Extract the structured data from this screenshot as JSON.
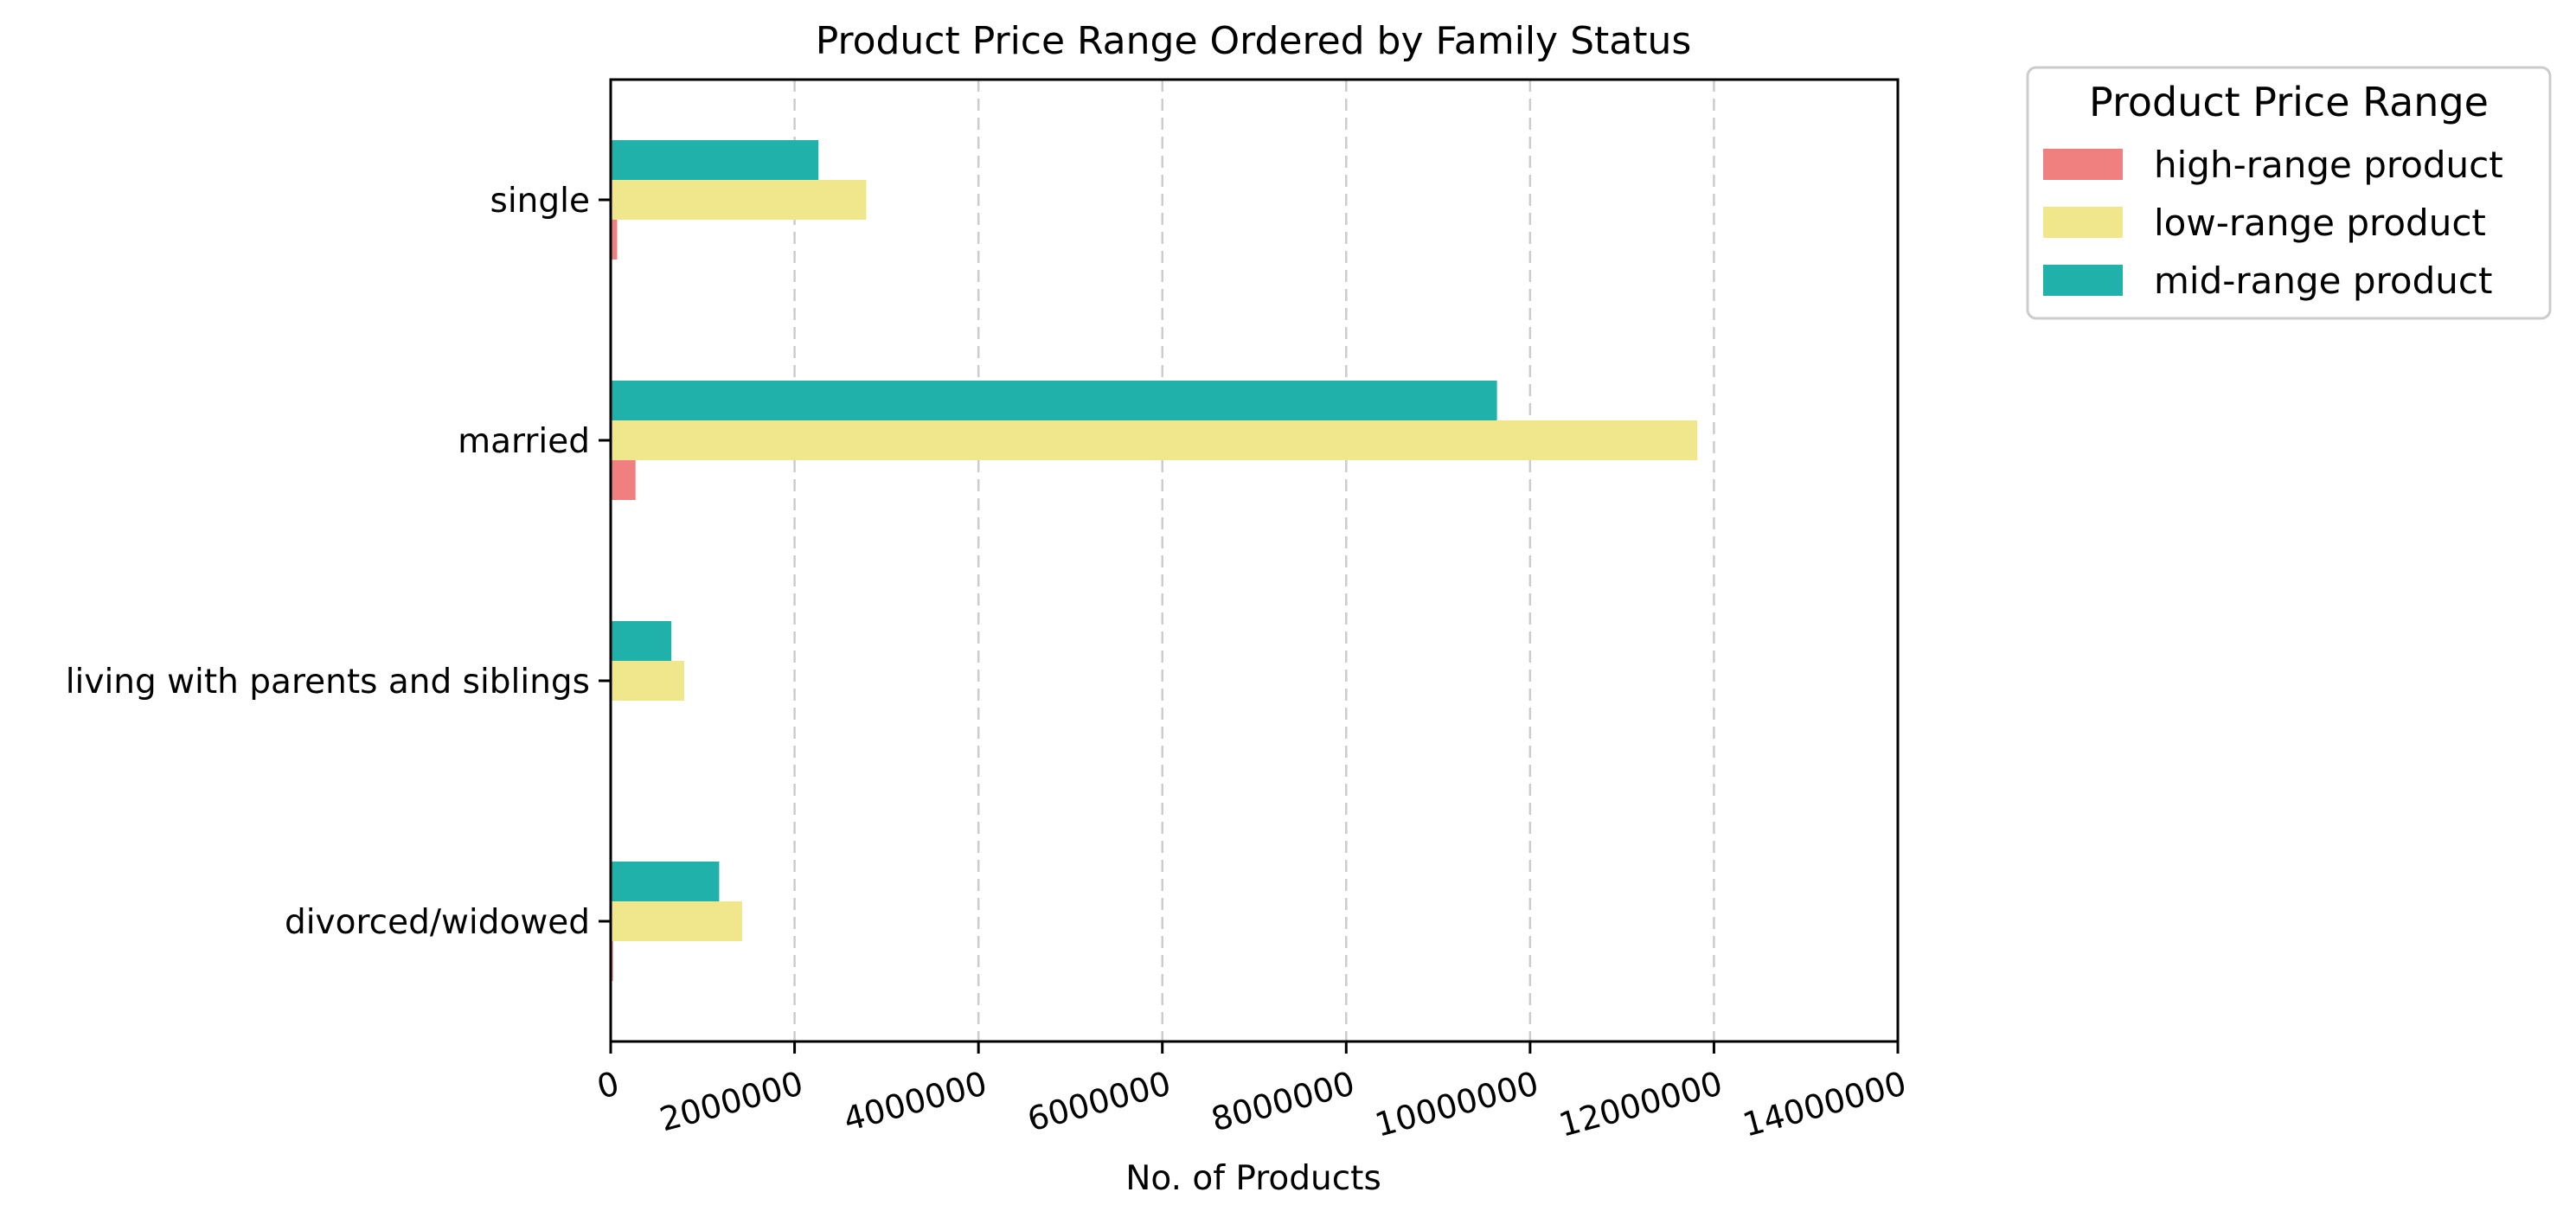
{
  "chart_data": {
    "type": "bar",
    "orientation": "horizontal",
    "title": "Product Price Range Ordered by Family Status",
    "xlabel": "No. of Products",
    "ylabel": "",
    "xlim": [
      0,
      14000000
    ],
    "xticks": [
      0,
      2000000,
      4000000,
      6000000,
      8000000,
      10000000,
      12000000,
      14000000
    ],
    "xtick_labels": [
      "0",
      "2000000",
      "4000000",
      "6000000",
      "8000000",
      "10000000",
      "12000000",
      "14000000"
    ],
    "grid": "vertical dashed",
    "legend_position": "outside top-right",
    "legend_title": "Product Price Range",
    "categories": [
      "single",
      "married",
      "living with parents and siblings",
      "divorced/widowed"
    ],
    "series": [
      {
        "name": "high-range product",
        "color": "#F08080",
        "values": [
          70000,
          270000,
          8000,
          25000
        ]
      },
      {
        "name": "low-range product",
        "color": "#F0E68C",
        "values": [
          2780000,
          11820000,
          800000,
          1430000
        ]
      },
      {
        "name": "mid-range product",
        "color": "#20B2AA",
        "values": [
          2260000,
          9640000,
          660000,
          1180000
        ]
      }
    ]
  }
}
